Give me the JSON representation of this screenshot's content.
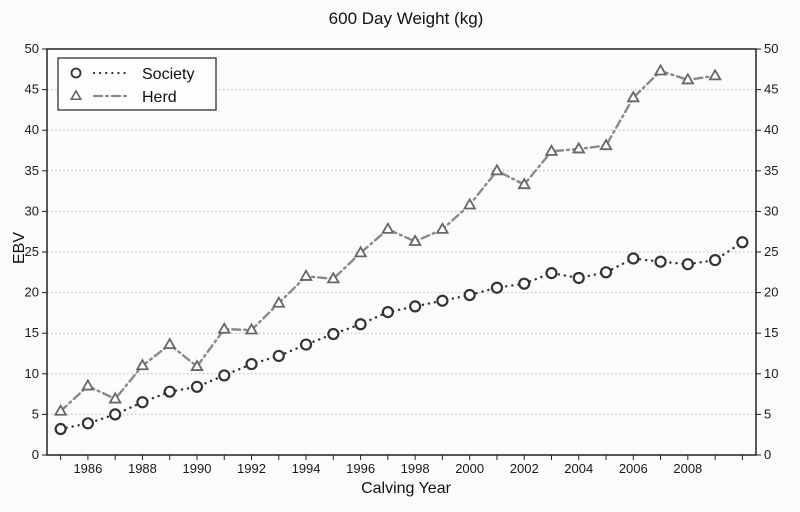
{
  "chart_data": {
    "type": "line",
    "title": "600 Day Weight (kg)",
    "xlabel": "Calving Year",
    "ylabel": "EBV",
    "xlim": [
      1984.5,
      2010.5
    ],
    "ylim": [
      0,
      50
    ],
    "x_ticks": [
      1986,
      1988,
      1990,
      1992,
      1994,
      1996,
      1998,
      2000,
      2002,
      2004,
      2006,
      2008
    ],
    "y_ticks": [
      0,
      5,
      10,
      15,
      20,
      25,
      30,
      35,
      40,
      45,
      50
    ],
    "grid": "horizontal dotted",
    "legend_position": "top-left",
    "colors": {
      "axis": "#222222",
      "grid": "#b8b8b8",
      "society": "#333333",
      "herd_line": "#8a8a8a",
      "herd_marker": "#666666"
    },
    "series": [
      {
        "name": "Society",
        "marker": "circle",
        "line_style": "dotted",
        "x": [
          1985,
          1986,
          1987,
          1988,
          1989,
          1990,
          1991,
          1992,
          1993,
          1994,
          1995,
          1996,
          1997,
          1998,
          1999,
          2000,
          2001,
          2002,
          2003,
          2004,
          2005,
          2006,
          2007,
          2008,
          2009,
          2010
        ],
        "y": [
          3.2,
          3.9,
          5.0,
          6.5,
          7.8,
          8.4,
          9.8,
          11.2,
          12.2,
          13.6,
          14.9,
          16.1,
          17.6,
          18.3,
          19.0,
          19.7,
          20.6,
          21.1,
          22.4,
          21.8,
          22.5,
          24.2,
          23.8,
          23.5,
          24.0,
          26.2
        ]
      },
      {
        "name": "Herd",
        "marker": "triangle",
        "line_style": "dash-dot",
        "x": [
          1985,
          1986,
          1987,
          1988,
          1989,
          1990,
          1991,
          1992,
          1993,
          1994,
          1995,
          1996,
          1997,
          1998,
          1999,
          2000,
          2001,
          2002,
          2003,
          2004,
          2005,
          2006,
          2007,
          2008,
          2009
        ],
        "y": [
          5.4,
          8.5,
          6.9,
          11.0,
          13.6,
          10.9,
          15.5,
          15.4,
          18.7,
          22.0,
          21.7,
          24.9,
          27.8,
          26.3,
          27.8,
          30.8,
          35.0,
          33.3,
          37.4,
          37.7,
          38.1,
          44.0,
          47.3,
          46.2,
          46.7
        ]
      }
    ]
  }
}
